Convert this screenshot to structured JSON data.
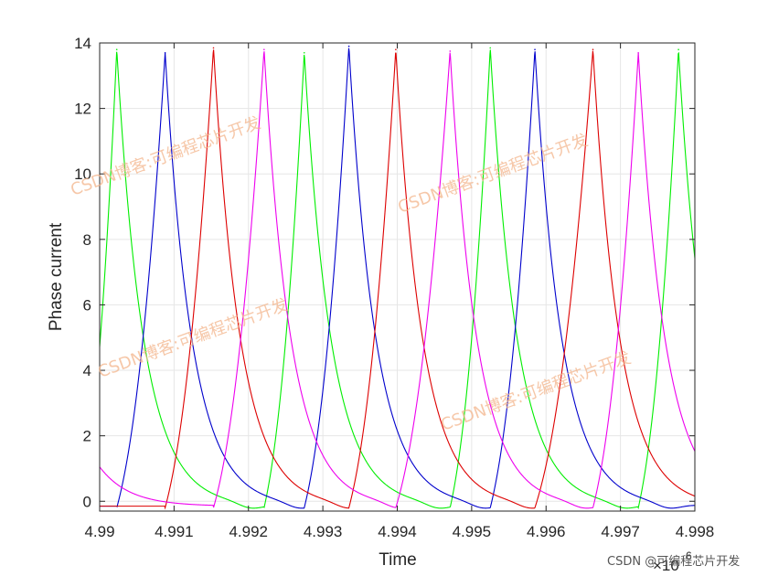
{
  "chart_data": {
    "type": "line",
    "xlabel": "Time",
    "ylabel": "Phase current",
    "x_exponent_label": "×10",
    "x_exponent_power": "6",
    "xlim": [
      4.99,
      4.998
    ],
    "ylim": [
      -0.3,
      14
    ],
    "xticks": [
      4.99,
      4.991,
      4.992,
      4.993,
      4.994,
      4.995,
      4.996,
      4.997,
      4.998
    ],
    "xtick_labels": [
      "4.99",
      "4.991",
      "4.992",
      "4.993",
      "4.994",
      "4.995",
      "4.996",
      "4.997",
      "4.998"
    ],
    "yticks": [
      0,
      2,
      4,
      6,
      8,
      10,
      12,
      14
    ],
    "ytick_labels": [
      "0",
      "2",
      "4",
      "6",
      "8",
      "10",
      "12",
      "14"
    ],
    "grid": true,
    "baseline_value": -0.15,
    "series": [
      {
        "color": "#00ee00",
        "start_value": 7.6,
        "peaks": [
          {
            "x_start": 4.98975,
            "x_peak": 4.99023,
            "peak": 13.8
          },
          {
            "x_start": 4.99221,
            "x_peak": 4.99275,
            "peak": 13.7
          },
          {
            "x_start": 4.99471,
            "x_peak": 4.99525,
            "peak": 13.85
          },
          {
            "x_start": 4.99724,
            "x_peak": 4.99778,
            "peak": 13.8
          }
        ]
      },
      {
        "color": "#0000cc",
        "peaks": [
          {
            "x_start": 4.99023,
            "x_peak": 4.99088,
            "peak": 13.7
          },
          {
            "x_start": 4.99275,
            "x_peak": 4.99335,
            "peak": 13.9
          },
          {
            "x_start": 4.99525,
            "x_peak": 4.99585,
            "peak": 13.8
          }
        ]
      },
      {
        "color": "#dd0000",
        "peaks": [
          {
            "x_start": 4.99088,
            "x_peak": 4.99153,
            "peak": 13.85
          },
          {
            "x_start": 4.99335,
            "x_peak": 4.99398,
            "peak": 13.8
          },
          {
            "x_start": 4.99585,
            "x_peak": 4.99663,
            "peak": 13.8
          }
        ]
      },
      {
        "color": "#ee00ee",
        "start_value": 1.05,
        "peaks": [
          {
            "x_start": 4.99153,
            "x_peak": 4.99221,
            "peak": 13.8
          },
          {
            "x_start": 4.99398,
            "x_peak": 4.99471,
            "peak": 13.75
          },
          {
            "x_start": 4.99663,
            "x_peak": 4.99724,
            "peak": 13.7
          }
        ]
      }
    ]
  },
  "watermark": {
    "text": "CSDN博客:可编程芯片开发",
    "footer_text": "CSDN @可编程芯片开发"
  }
}
